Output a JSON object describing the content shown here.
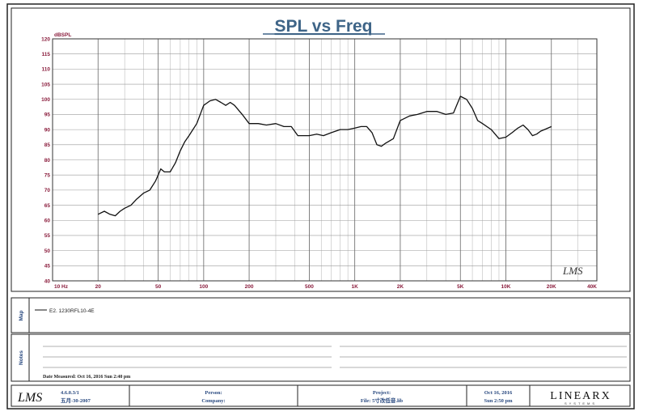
{
  "page": {
    "title": "SPL vs Freq"
  },
  "chart_data": {
    "type": "line",
    "title": "SPL vs Freq",
    "ylabel": "dBSPL",
    "xlabel": "",
    "xscale": "log",
    "xlim": [
      10,
      40000
    ],
    "ylim": [
      40,
      120
    ],
    "grid": true,
    "x_ticks": [
      10,
      20,
      50,
      100,
      200,
      500,
      1000,
      2000,
      5000,
      10000,
      20000,
      40000
    ],
    "x_tick_labels": [
      "10 Hz",
      "20",
      "50",
      "100",
      "200",
      "500",
      "1K",
      "2K",
      "5K",
      "10K",
      "20K",
      "40K"
    ],
    "y_ticks": [
      40,
      45,
      50,
      55,
      60,
      65,
      70,
      75,
      80,
      85,
      90,
      95,
      100,
      105,
      110,
      115,
      120
    ],
    "series": [
      {
        "name": "E2. 1230RFL10-4E",
        "color": "#111111",
        "x": [
          20,
          22,
          24,
          26,
          28,
          30,
          33,
          36,
          40,
          44,
          48,
          52,
          55,
          60,
          65,
          70,
          75,
          80,
          90,
          100,
          110,
          120,
          130,
          140,
          150,
          160,
          180,
          200,
          230,
          260,
          300,
          340,
          380,
          420,
          500,
          560,
          620,
          700,
          800,
          900,
          1000,
          1100,
          1200,
          1300,
          1400,
          1500,
          1600,
          1800,
          2000,
          2300,
          2600,
          3000,
          3500,
          4000,
          4500,
          5000,
          5500,
          6000,
          6500,
          7000,
          8000,
          9000,
          10000,
          11000,
          12000,
          13000,
          14000,
          15000,
          16000,
          17000,
          18000,
          20000
        ],
        "y": [
          62,
          63,
          62,
          61.5,
          63,
          64,
          65,
          67,
          69,
          70,
          73,
          77,
          76,
          76,
          79,
          83,
          86,
          88,
          92,
          98,
          99.5,
          100,
          99,
          98,
          99,
          98,
          95,
          92,
          92,
          91.5,
          92,
          91,
          91,
          88,
          88,
          88.5,
          88,
          89,
          90,
          90,
          90.5,
          91,
          91,
          89,
          85,
          84.5,
          85.5,
          87,
          93,
          94.5,
          95,
          96,
          96,
          95,
          95.5,
          101,
          100,
          97,
          93,
          92,
          90,
          87,
          87.5,
          89,
          90.5,
          91.5,
          90,
          88,
          88.5,
          89.5,
          90,
          91
        ]
      }
    ]
  },
  "panels": {
    "map_label": "Map",
    "notes_label": "Notes",
    "legend_entry": "E2. 1230RFL10-4E",
    "date_measured": "Date Measured: Oct 16, 2016  Sun  2:40 pm"
  },
  "footer": {
    "logo_text": "LMS",
    "version": "4.6.0.3/1",
    "version_date": "五月-30-2007",
    "person_label": "Person:",
    "company_label": "Company:",
    "project_label": "Project:",
    "file_label": "File: 5寸改低音.lib",
    "date": "Oct 16, 2016",
    "time": "Sun  2:50 pm",
    "brand": "LINEARX",
    "brand_sub": "SYSTEMS"
  },
  "watermark": "LMS"
}
